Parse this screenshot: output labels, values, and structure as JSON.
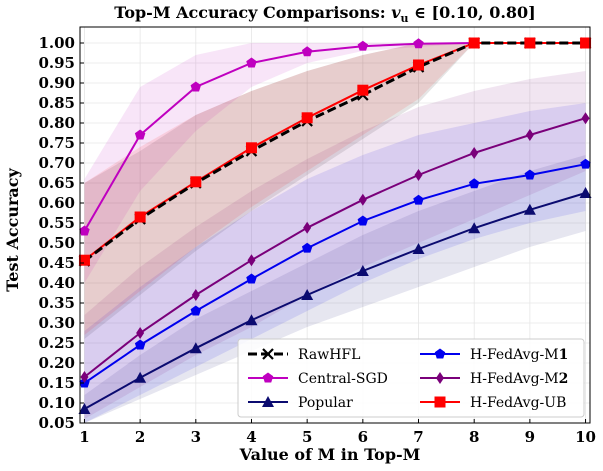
{
  "chart_data": {
    "type": "line",
    "title": "Top-M Accuracy Comparisons: v_u ∈ [0.10, 0.80]",
    "title_parts": {
      "prefix": "Top-M Accuracy Comparisons: ",
      "var_main": "v",
      "var_sub": "u",
      "suffix": " ∈ [0.10, 0.80]"
    },
    "xlabel": "Value of M in Top-M",
    "ylabel": "Test Accuracy",
    "xlim": [
      1,
      10
    ],
    "ylim": [
      0.05,
      1.04
    ],
    "xticks": [
      1,
      2,
      3,
      4,
      5,
      6,
      7,
      8,
      9,
      10
    ],
    "yticks": [
      "0.05",
      "0.10",
      "0.15",
      "0.20",
      "0.25",
      "0.30",
      "0.35",
      "0.40",
      "0.45",
      "0.50",
      "0.55",
      "0.60",
      "0.65",
      "0.70",
      "0.75",
      "0.80",
      "0.85",
      "0.90",
      "0.95",
      "1.00"
    ],
    "grid": true,
    "legend_position": "bottom-right",
    "legend_columns": 2,
    "x": [
      1,
      2,
      3,
      4,
      5,
      6,
      7,
      8,
      9,
      10
    ],
    "series": [
      {
        "name": "RawHFL",
        "color": "#000000",
        "marker": "x",
        "dashed": true,
        "values": [
          0.455,
          0.56,
          0.65,
          0.73,
          0.805,
          0.87,
          0.94,
          1.0,
          1.0,
          1.0
        ],
        "band_lower": [
          0.26,
          0.37,
          0.48,
          0.58,
          0.67,
          0.76,
          0.85,
          1.0,
          1.0,
          1.0
        ],
        "band_upper": [
          0.65,
          0.73,
          0.82,
          0.88,
          0.93,
          0.97,
          1.0,
          1.0,
          1.0,
          1.0
        ]
      },
      {
        "name": "Central-SGD",
        "color": "#bf00bf",
        "marker": "pentagon",
        "dashed": false,
        "values": [
          0.53,
          0.77,
          0.89,
          0.95,
          0.978,
          0.992,
          0.998,
          1.0,
          1.0,
          1.0
        ],
        "band_lower": [
          0.4,
          0.63,
          0.78,
          0.89,
          0.95,
          0.98,
          0.99,
          1.0,
          1.0,
          1.0
        ],
        "band_upper": [
          0.66,
          0.89,
          0.97,
          1.0,
          1.0,
          1.0,
          1.0,
          1.0,
          1.0,
          1.0
        ]
      },
      {
        "name": "Popular",
        "color": "#0b0b70",
        "marker": "triangle",
        "dashed": false,
        "values": [
          0.085,
          0.163,
          0.237,
          0.307,
          0.37,
          0.43,
          0.485,
          0.537,
          0.583,
          0.625
        ],
        "band_lower": [
          0.05,
          0.11,
          0.17,
          0.23,
          0.29,
          0.34,
          0.39,
          0.44,
          0.49,
          0.53
        ],
        "band_upper": [
          0.12,
          0.22,
          0.31,
          0.38,
          0.45,
          0.52,
          0.58,
          0.63,
          0.68,
          0.72
        ]
      },
      {
        "name": "H-FedAvg-M",
        "name_bold_suffix": "1",
        "color": "#0000ee",
        "marker": "pentagon",
        "dashed": false,
        "values": [
          0.15,
          0.245,
          0.33,
          0.41,
          0.487,
          0.555,
          0.607,
          0.648,
          0.67,
          0.697
        ],
        "band_lower": [
          0.05,
          0.12,
          0.19,
          0.26,
          0.33,
          0.4,
          0.46,
          0.51,
          0.55,
          0.58
        ],
        "band_upper": [
          0.28,
          0.39,
          0.49,
          0.58,
          0.66,
          0.72,
          0.77,
          0.8,
          0.83,
          0.85
        ]
      },
      {
        "name": "H-FedAvg-M",
        "name_bold_suffix": "2",
        "color": "#7a007a",
        "marker": "diamond",
        "dashed": false,
        "values": [
          0.165,
          0.275,
          0.37,
          0.457,
          0.538,
          0.608,
          0.67,
          0.725,
          0.77,
          0.812
        ],
        "band_lower": [
          0.06,
          0.14,
          0.22,
          0.29,
          0.37,
          0.44,
          0.5,
          0.56,
          0.62,
          0.68
        ],
        "band_upper": [
          0.32,
          0.44,
          0.54,
          0.63,
          0.71,
          0.78,
          0.84,
          0.88,
          0.91,
          0.93
        ]
      },
      {
        "name": "H-FedAvg-UB",
        "color": "#ff0000",
        "marker": "square",
        "dashed": false,
        "values": [
          0.457,
          0.565,
          0.653,
          0.738,
          0.813,
          0.882,
          0.945,
          1.0,
          1.0,
          1.0
        ],
        "band_lower": [
          0.27,
          0.38,
          0.49,
          0.59,
          0.68,
          0.77,
          0.86,
          1.0,
          1.0,
          1.0
        ],
        "band_upper": [
          0.65,
          0.74,
          0.82,
          0.88,
          0.93,
          0.97,
          1.0,
          1.0,
          1.0,
          1.0
        ]
      }
    ]
  }
}
